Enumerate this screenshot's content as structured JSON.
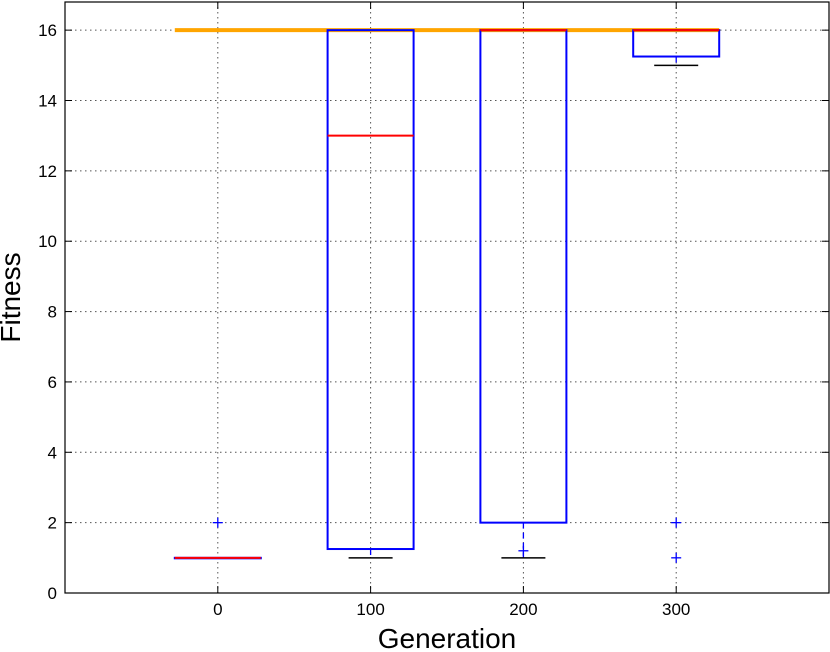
{
  "chart_data": {
    "type": "box",
    "title": "",
    "xlabel": "Generation",
    "ylabel": "Fitness",
    "ylim": [
      0,
      16.8
    ],
    "yticks": [
      0,
      2,
      4,
      6,
      8,
      10,
      12,
      14,
      16
    ],
    "grid": true,
    "categories": [
      "0",
      "100",
      "200",
      "300"
    ],
    "reference_line": {
      "y": 16,
      "color": "#ffa500"
    },
    "boxes": [
      {
        "category": "0",
        "whisker_low": 1,
        "q1": 1,
        "median": 1,
        "q3": 1,
        "whisker_high": 1,
        "outliers": [
          2
        ]
      },
      {
        "category": "100",
        "whisker_low": 1,
        "q1": 1.25,
        "median": 13,
        "q3": 16,
        "whisker_high": 16,
        "outliers": []
      },
      {
        "category": "200",
        "whisker_low": 1,
        "q1": 2,
        "median": 16,
        "q3": 16,
        "whisker_high": 16,
        "outliers": [
          1.2
        ]
      },
      {
        "category": "300",
        "whisker_low": 15,
        "q1": 15.25,
        "median": 16,
        "q3": 16,
        "whisker_high": 16,
        "outliers": [
          1,
          2
        ]
      }
    ],
    "colors": {
      "box": "#0000ff",
      "median": "#ff0000",
      "whisker": "#0000ff",
      "cap": "#000000",
      "outlier": "#0000ff",
      "reference": "#ffa500"
    }
  }
}
